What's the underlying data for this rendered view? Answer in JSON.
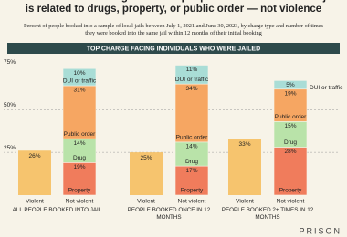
{
  "chart_data": {
    "type": "stacked-bar",
    "title": "The most serious charge for most people who are booked into jail is related to drugs, property, or public order — not violence",
    "subtitle": "Percent of people booked into a sample of local jails between July 1, 2021 and June 30, 2023, by charge type and number of times they were booked into the same jail within 12 months of their initial booking",
    "panel_title": "TOP CHARGE FACING INDIVIDUALS WHO WERE JAILED",
    "groups": [
      "ALL PEOPLE BOOKED INTO JAIL",
      "PEOPLE BOOKED ONCE IN 12 MONTHS",
      "PEOPLE BOOKED 2+ TIMES IN 12 MONTHS"
    ],
    "bars": [
      "Violent",
      "Not violent"
    ],
    "violent": {
      "color": "#f6c46e",
      "values": [
        26,
        25,
        33
      ],
      "value_labels": [
        "26%",
        "25%",
        "33%"
      ]
    },
    "series": [
      {
        "name": "Property",
        "color": "#f07c5c",
        "values": [
          19,
          17,
          28
        ],
        "value_labels": [
          "19%",
          "17%",
          "28%"
        ]
      },
      {
        "name": "Drug",
        "color": "#b9e3a9",
        "values": [
          14,
          14,
          15
        ],
        "value_labels": [
          "14%",
          "14%",
          "15%"
        ]
      },
      {
        "name": "Public order",
        "color": "#f6a662",
        "values": [
          31,
          34,
          19
        ],
        "value_labels": [
          "31%",
          "34%",
          "19%"
        ]
      },
      {
        "name": "DUI or traffic",
        "color": "#a9ddd6",
        "values": [
          10,
          11,
          5
        ],
        "value_labels": [
          "10%",
          "11%",
          "5%"
        ]
      }
    ],
    "ylim": [
      0,
      80
    ],
    "yticks": [
      {
        "value": 25,
        "label": "25%"
      },
      {
        "value": 50,
        "label": "50%"
      },
      {
        "value": 75,
        "label": "75%"
      }
    ],
    "grid": true,
    "logo": "PRISON"
  }
}
